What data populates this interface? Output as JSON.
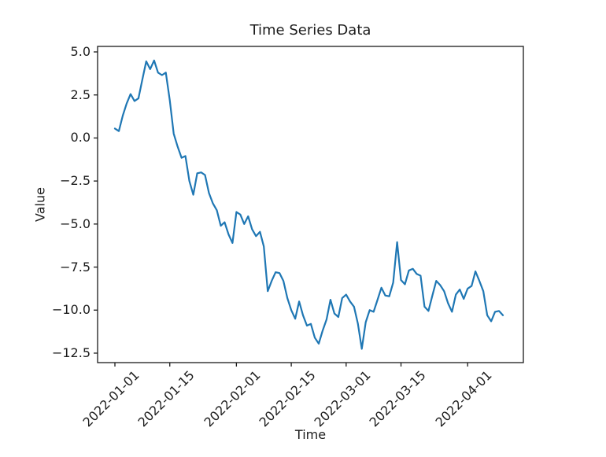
{
  "chart_data": {
    "type": "line",
    "title": "Time Series Data",
    "xlabel": "Time",
    "ylabel": "Value",
    "line_color": "#1f77b4",
    "axis_color": "#1a1a1a",
    "text_color": "#1c1c1c",
    "grid": false,
    "legend": null,
    "x_start_date": "2022-01-01",
    "x_end_date": "2022-04-10",
    "x_step_days": 1,
    "values": [
      0.55,
      0.4,
      1.3,
      2.0,
      2.55,
      2.15,
      2.3,
      3.4,
      4.45,
      4.0,
      4.5,
      3.8,
      3.65,
      3.8,
      2.2,
      0.25,
      -0.5,
      -1.15,
      -1.05,
      -2.5,
      -3.3,
      -2.05,
      -2.0,
      -2.15,
      -3.2,
      -3.8,
      -4.2,
      -5.1,
      -4.9,
      -5.6,
      -6.1,
      -4.3,
      -4.45,
      -5.0,
      -4.55,
      -5.3,
      -5.7,
      -5.45,
      -6.3,
      -8.9,
      -8.3,
      -7.8,
      -7.85,
      -8.3,
      -9.3,
      -10.0,
      -10.5,
      -9.5,
      -10.3,
      -10.9,
      -10.8,
      -11.6,
      -11.95,
      -11.2,
      -10.55,
      -9.4,
      -10.2,
      -10.4,
      -9.3,
      -9.1,
      -9.5,
      -9.8,
      -10.8,
      -12.25,
      -10.7,
      -10.0,
      -10.1,
      -9.4,
      -8.7,
      -9.15,
      -9.2,
      -8.4,
      -6.05,
      -8.25,
      -8.5,
      -7.7,
      -7.6,
      -7.9,
      -8.0,
      -9.8,
      -10.05,
      -9.15,
      -8.3,
      -8.55,
      -8.9,
      -9.6,
      -10.1,
      -9.1,
      -8.8,
      -9.35,
      -8.75,
      -8.6,
      -7.75,
      -8.3,
      -8.9,
      -10.3,
      -10.65,
      -10.1,
      -10.05,
      -10.3
    ],
    "xtick_labels": [
      "2022-01-01",
      "2022-01-15",
      "2022-02-01",
      "2022-02-15",
      "2022-03-01",
      "2022-03-15",
      "2022-04-01"
    ],
    "xtick_days": [
      0,
      14,
      31,
      45,
      59,
      73,
      90
    ],
    "ytick_values": [
      5.0,
      2.5,
      0.0,
      -2.5,
      -5.0,
      -7.5,
      -10.0,
      -12.5
    ],
    "ytick_labels": [
      "5.0",
      "2.5",
      "0.0",
      "−2.5",
      "−5.0",
      "−7.5",
      "−10.0",
      "−12.5"
    ],
    "xlim_days": [
      -4.42,
      104.22
    ],
    "ylim": [
      -13.05,
      5.32
    ]
  }
}
